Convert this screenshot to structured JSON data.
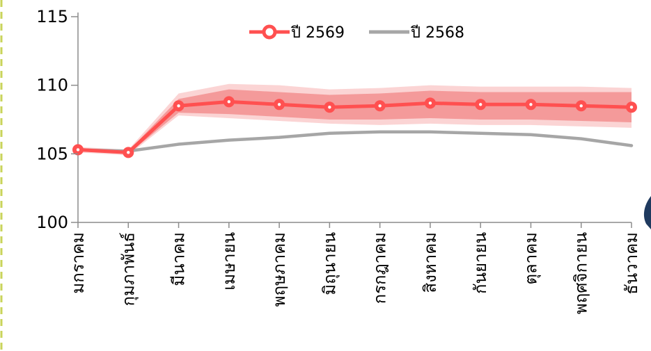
{
  "chart_data": {
    "type": "line",
    "categories": [
      "มกราคม",
      "กุมภาพันธ์",
      "มีนาคม",
      "เมษายน",
      "พฤษภาคม",
      "มิถุนายน",
      "กรกฎาคม",
      "สิงหาคม",
      "กันยายน",
      "ตุลาคม",
      "พฤศจิกายน",
      "ธันวาคม"
    ],
    "ylim": [
      100,
      115
    ],
    "yticks": [
      100,
      105,
      110,
      115
    ],
    "series": [
      {
        "name": "ปี 2569",
        "color": "#ff5050",
        "marker": "circle",
        "values": [
          105.3,
          105.1,
          108.5,
          108.8,
          108.6,
          108.4,
          108.5,
          108.7,
          108.6,
          108.6,
          108.5,
          108.4
        ],
        "band_inner": {
          "color": "#f49a9a",
          "lower": [
            105.2,
            105.0,
            108.0,
            107.9,
            107.7,
            107.5,
            107.5,
            107.6,
            107.5,
            107.5,
            107.4,
            107.3
          ],
          "upper": [
            105.4,
            105.2,
            109.0,
            109.7,
            109.5,
            109.3,
            109.4,
            109.6,
            109.5,
            109.5,
            109.5,
            109.5
          ]
        },
        "band_outer": {
          "color": "#fbd4d4",
          "lower": [
            105.1,
            104.9,
            107.8,
            107.6,
            107.4,
            107.2,
            107.1,
            107.2,
            107.1,
            107.1,
            107.0,
            106.9
          ],
          "upper": [
            105.5,
            105.3,
            109.4,
            110.1,
            110.0,
            109.7,
            109.8,
            110.0,
            109.9,
            109.9,
            109.9,
            109.8
          ]
        }
      },
      {
        "name": "ปี 2568",
        "color": "#a6a6a6",
        "values": [
          105.3,
          105.2,
          105.7,
          106.0,
          106.2,
          106.5,
          106.6,
          106.6,
          106.5,
          106.4,
          106.1,
          105.6
        ]
      }
    ],
    "legend": {
      "position": "top-center"
    },
    "grid": false
  }
}
